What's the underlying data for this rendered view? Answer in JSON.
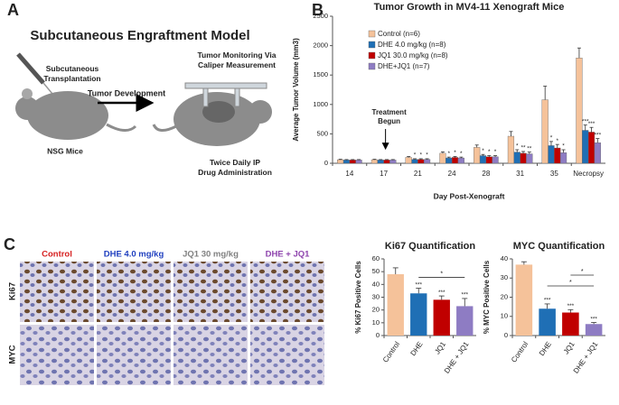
{
  "panel_labels": [
    "A",
    "B",
    "C"
  ],
  "panel_a": {
    "title": "Subcutaneous Engraftment Model",
    "step1": "Subcutaneous Transplantation",
    "step2": "Tumor Development",
    "mouse1": "NSG Mice",
    "step3": "Tumor Monitoring Via Caliper Measurement",
    "step4": "Twice Daily IP Drug Administration"
  },
  "panel_c": {
    "columns": [
      {
        "label": "Control",
        "color": "#d62020"
      },
      {
        "label": "DHE 4.0 mg/kg",
        "color": "#1f3fbf"
      },
      {
        "label": "JQ1 30 mg/kg",
        "color": "#808080"
      },
      {
        "label": "DHE + JQ1",
        "color": "#8e44ad"
      }
    ],
    "rows": [
      "Ki67",
      "MYC"
    ]
  },
  "chart_data": [
    {
      "type": "bar",
      "title": "Tumor Growth in MV4-11 Xenograft Mice",
      "y_label": "Average Tumor Volume (mm3)",
      "x_label": "Day Post-Xenograft",
      "categories": [
        "14",
        "17",
        "21",
        "24",
        "28",
        "31",
        "35",
        "Necropsy"
      ],
      "series": [
        {
          "name": "Control (n=6)",
          "color": "#f5c29a",
          "values": [
            60,
            60,
            100,
            170,
            270,
            460,
            1080,
            1790
          ],
          "errors": [
            8,
            8,
            15,
            25,
            40,
            80,
            230,
            170
          ],
          "significance": [
            null,
            null,
            null,
            null,
            null,
            null,
            null,
            null
          ]
        },
        {
          "name": "DHE 4.0 mg/kg (n=8)",
          "color": "#1f6fb5",
          "values": [
            55,
            55,
            65,
            90,
            130,
            190,
            300,
            560
          ],
          "errors": [
            8,
            8,
            12,
            15,
            20,
            40,
            70,
            90
          ],
          "significance": [
            null,
            null,
            "*",
            "*",
            "*",
            "*",
            "*",
            "***"
          ]
        },
        {
          "name": "JQ1 30.0 mg/kg (n=8)",
          "color": "#c00000",
          "values": [
            55,
            55,
            65,
            100,
            110,
            170,
            260,
            530
          ],
          "errors": [
            8,
            8,
            12,
            15,
            20,
            30,
            60,
            80
          ],
          "significance": [
            null,
            null,
            "*",
            "*",
            "*",
            "**",
            "*",
            "***"
          ]
        },
        {
          "name": "DHE+JQ1 (n=7)",
          "color": "#8e7cc3",
          "values": [
            55,
            55,
            65,
            90,
            110,
            160,
            180,
            350
          ],
          "errors": [
            8,
            8,
            12,
            15,
            20,
            30,
            50,
            70
          ],
          "significance": [
            null,
            null,
            "*",
            "*",
            "*",
            "**",
            "*",
            "***"
          ]
        }
      ],
      "ylim": [
        0,
        2500
      ],
      "yticks": [
        0,
        500,
        1000,
        1500,
        2000,
        2500
      ],
      "annotations": [
        {
          "text": "Treatment Begun",
          "category": "17"
        }
      ]
    },
    {
      "type": "bar",
      "title": "Ki67 Quantification",
      "y_label": "% Ki67 Positive Cells",
      "categories": [
        "Control",
        "DHE",
        "JQ1",
        "DHE + JQ1"
      ],
      "values": [
        48,
        33,
        28,
        23
      ],
      "errors": [
        5,
        4,
        3,
        6
      ],
      "colors": [
        "#f5c29a",
        "#1f6fb5",
        "#c00000",
        "#8e7cc3"
      ],
      "significance": [
        null,
        "***",
        "***",
        "***"
      ],
      "brackets": [
        {
          "categories": [
            "DHE",
            "DHE + JQ1"
          ],
          "label": "*"
        }
      ],
      "ylim": [
        0,
        60
      ],
      "yticks": [
        0,
        10,
        20,
        30,
        40,
        50,
        60
      ]
    },
    {
      "type": "bar",
      "title": "MYC Quantification",
      "y_label": "% MYC Positive Cells",
      "categories": [
        "Control",
        "DHE",
        "JQ1",
        "DHE + JQ1"
      ],
      "values": [
        37,
        14,
        12,
        6
      ],
      "errors": [
        1.5,
        2.5,
        1.5,
        0.8
      ],
      "colors": [
        "#f5c29a",
        "#1f6fb5",
        "#c00000",
        "#8e7cc3"
      ],
      "significance": [
        null,
        "***",
        "***",
        "***"
      ],
      "brackets": [
        {
          "categories": [
            "DHE",
            "DHE + JQ1"
          ],
          "label": "*"
        },
        {
          "categories": [
            "JQ1",
            "DHE + JQ1"
          ],
          "label": "*"
        }
      ],
      "ylim": [
        0,
        40
      ],
      "yticks": [
        0,
        10,
        20,
        30,
        40
      ]
    }
  ]
}
